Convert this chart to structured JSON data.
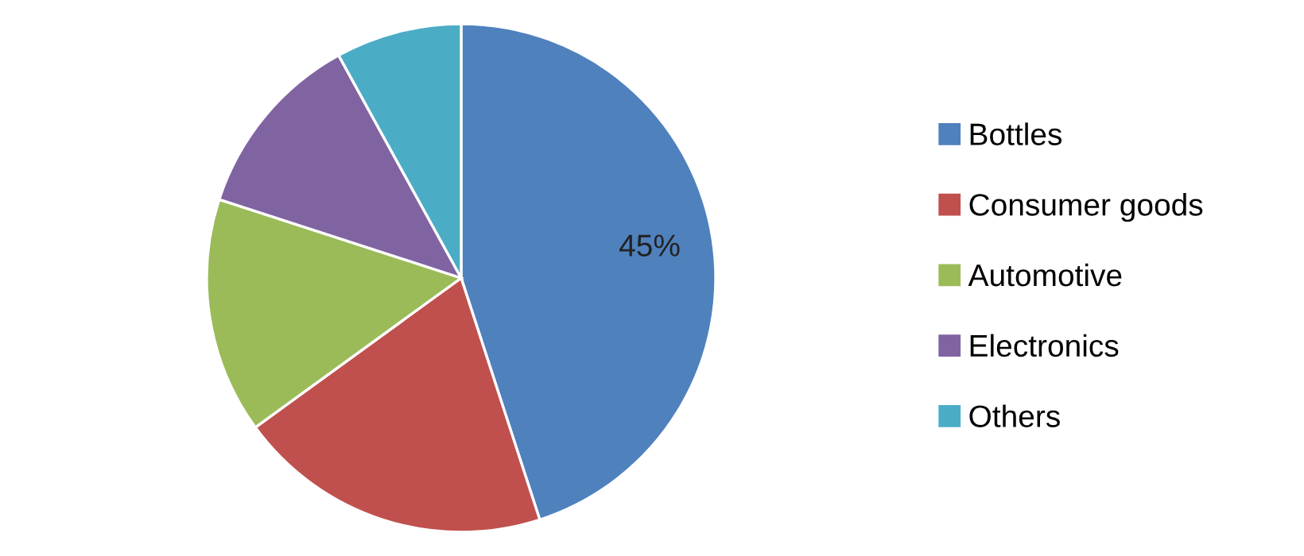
{
  "chart_data": {
    "type": "pie",
    "categories": [
      "Bottles",
      "Consumer goods",
      "Automotive",
      "Electronics",
      "Others"
    ],
    "values": [
      45,
      20,
      15,
      12,
      8
    ],
    "colors": [
      "#4f81bd",
      "#c0504d",
      "#9bbb59",
      "#8064a2",
      "#4bacc6"
    ],
    "value_labels": [
      "45%",
      null,
      null,
      null,
      null
    ],
    "legend": "right"
  }
}
